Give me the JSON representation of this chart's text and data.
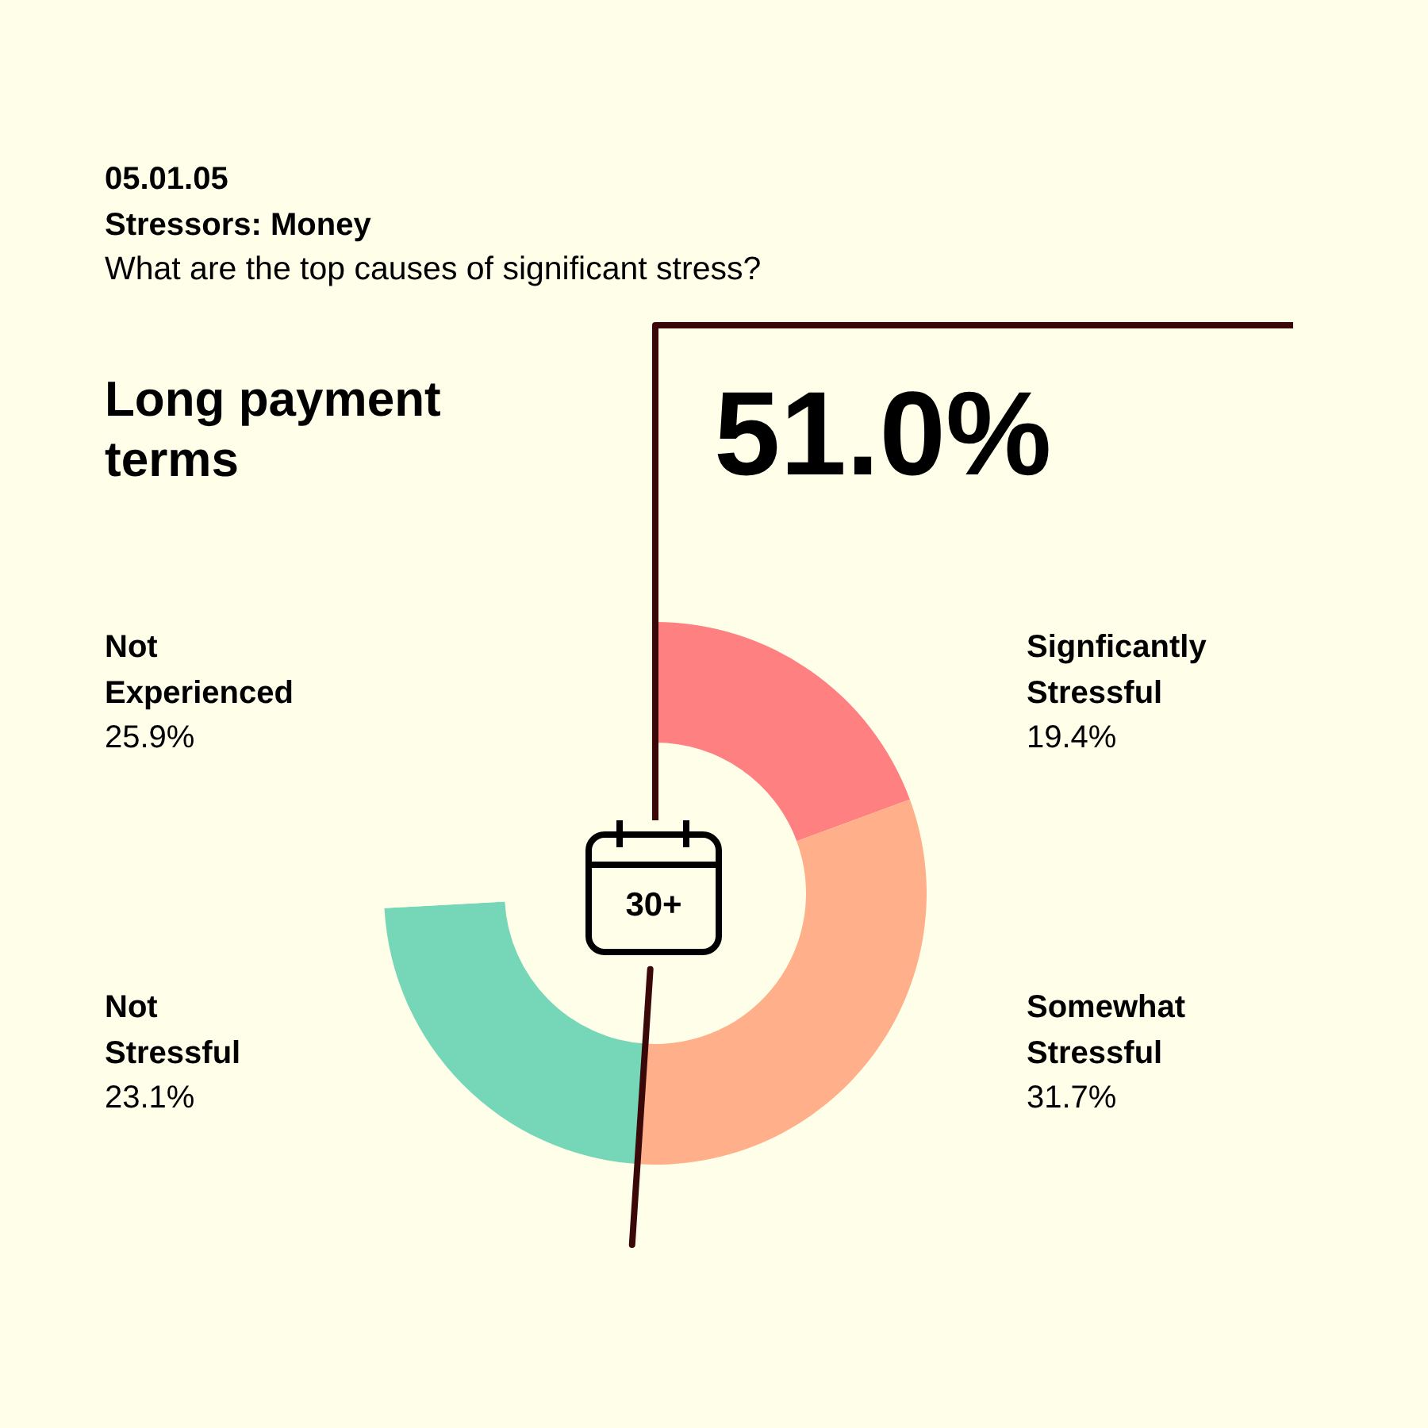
{
  "chart_data": {
    "type": "donut",
    "title": "Long payment terms",
    "subtitle": "What are the top causes of significant stress?",
    "categories": [
      "Signficantly Stressful",
      "Somewhat Stressful",
      "Not Stressful",
      "Not Experienced"
    ],
    "values": [
      19.4,
      31.7,
      23.1,
      25.9
    ],
    "colors": [
      "#ff8080",
      "#ffb08a",
      "#76d7b8",
      "#fffee8"
    ],
    "value_labels": [
      "19.4%",
      "31.7%",
      "23.1%",
      "25.9%"
    ],
    "annotations": [
      "05.01.05",
      "Stressors: Money",
      "51.0%",
      "30+"
    ]
  }
}
